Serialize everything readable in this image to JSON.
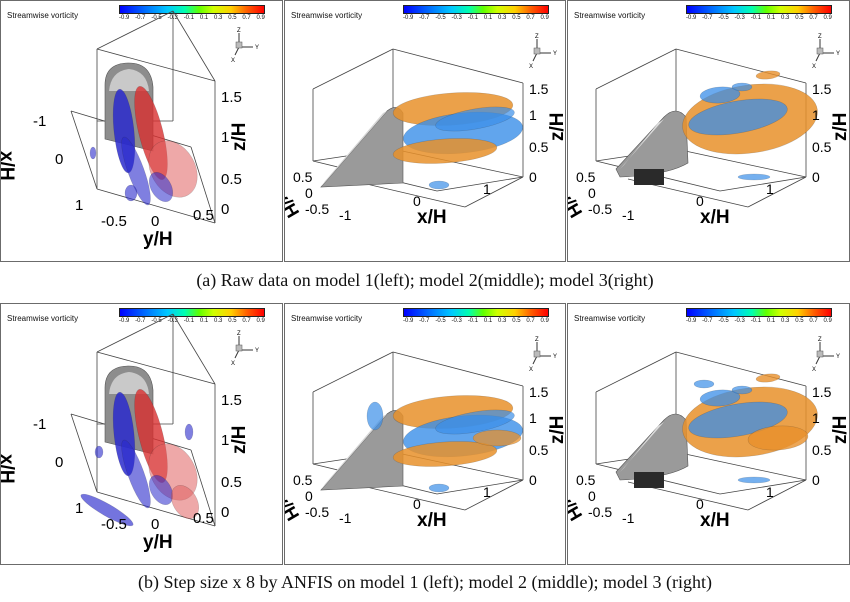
{
  "colorbar": {
    "title": "Streamwise vorticity",
    "ticks": [
      "-0.9",
      "-0.7",
      "-0.5",
      "-0.3",
      "-0.1",
      "0.1",
      "0.3",
      "0.5",
      "0.7",
      "0.9"
    ]
  },
  "panels": {
    "left": {
      "axis_labels": {
        "x": "x/H",
        "y": "y/H",
        "z": "z/H"
      },
      "x_ticks": [
        "-1",
        "0",
        "1"
      ],
      "y_ticks": [
        "-0.5",
        "0",
        "0.5"
      ],
      "z_ticks": [
        "1.5",
        "1",
        "0.5",
        "0"
      ],
      "triad": {
        "z": "Z",
        "y": "Y",
        "x": "X"
      }
    },
    "middle": {
      "axis_labels": {
        "x": "x/H",
        "y": "y/H",
        "z": "z/H"
      },
      "x_ticks": [
        "-1",
        "0",
        "1"
      ],
      "y_ticks": [
        "0.5",
        "0",
        "-0.5"
      ],
      "z_ticks": [
        "1.5",
        "1",
        "0.5",
        "0"
      ],
      "triad": {
        "z": "Z",
        "y": "Y",
        "x": "X"
      }
    },
    "right": {
      "axis_labels": {
        "x": "x/H",
        "y": "y/H",
        "z": "z/H"
      },
      "x_ticks": [
        "-1",
        "0",
        "1"
      ],
      "y_ticks": [
        "0.5",
        "0",
        "-0.5"
      ],
      "z_ticks": [
        "1.5",
        "1",
        "0.5",
        "0"
      ],
      "triad": {
        "z": "Z",
        "y": "Y",
        "x": "X"
      }
    }
  },
  "captions": {
    "a": "(a) Raw data on model 1(left); model 2(middle); model 3(right)",
    "b": "(b) Step size x 8 by ANFIS on model 1 (left); model 2 (middle); model 3 (right)"
  },
  "colors": {
    "negative": "#2a2acc",
    "positive": "#d83030",
    "blue_iso": "#3a8ee8",
    "orange_iso": "#e8902a",
    "model": "#9a9a9a"
  }
}
